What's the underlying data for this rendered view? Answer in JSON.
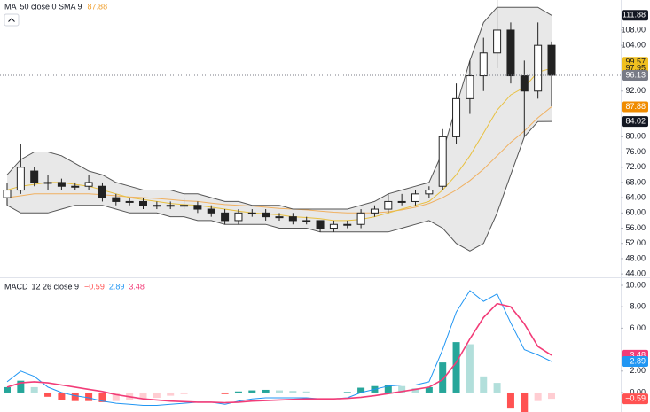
{
  "chart_data": [
    {
      "type": "candlestick",
      "title": "MA",
      "subtitle": "50 close 0 SMA 9",
      "legend_value": {
        "value": 87.88,
        "label": "87.88",
        "color": "#f0a030"
      },
      "open": [
        64,
        66,
        71,
        68,
        68,
        67,
        67,
        67,
        64,
        63,
        63,
        62,
        62,
        62,
        62,
        61,
        60,
        58,
        60,
        60,
        59,
        59,
        58,
        58,
        56,
        57,
        57,
        60,
        61,
        63,
        63,
        65,
        67,
        80,
        90,
        96,
        102,
        108,
        96,
        92,
        104
      ],
      "high": [
        68,
        78,
        72,
        70,
        69,
        68,
        70,
        68,
        65,
        64,
        64,
        63,
        63,
        64,
        63,
        62,
        61,
        61,
        61,
        61,
        60,
        60,
        59,
        58,
        58,
        58,
        61,
        62,
        65,
        65,
        66,
        67,
        82,
        94,
        100,
        106,
        116,
        110,
        100,
        110,
        105
      ],
      "low": [
        62,
        65,
        67,
        66,
        66,
        66,
        66,
        63,
        62,
        62,
        61,
        61,
        61,
        61,
        60,
        59,
        57,
        57,
        59,
        58,
        58,
        57,
        57,
        55,
        55,
        56,
        56,
        59,
        60,
        62,
        62,
        64,
        66,
        78,
        86,
        92,
        98,
        94,
        80,
        90,
        88
      ],
      "close": [
        66,
        72,
        68,
        68,
        67,
        67,
        68,
        64,
        63,
        63,
        62,
        62,
        62,
        62,
        61,
        60,
        58,
        60,
        60,
        59,
        59,
        58,
        58,
        56,
        57,
        57,
        60,
        61,
        63,
        63,
        65,
        66,
        80,
        90,
        96,
        102,
        108,
        96,
        92,
        104,
        96.13
      ],
      "up_color": "#ffffff",
      "down_color": "#222222",
      "series": [
        {
          "color": "#f0b060",
          "values": [
            64,
            64.5,
            65,
            65,
            65,
            65,
            65,
            64.8,
            64.5,
            64.2,
            64,
            63.8,
            63.5,
            63.2,
            63,
            62.6,
            62.2,
            62,
            61.8,
            61.5,
            61.2,
            61,
            60.8,
            60.5,
            60.2,
            60,
            60,
            60,
            60.3,
            60.8,
            61.5,
            62.5,
            64,
            66,
            68.5,
            71.5,
            75,
            78.5,
            81.5,
            85,
            87.88
          ]
        },
        {
          "color": "#e8c040",
          "values": [
            66,
            67,
            67.5,
            68,
            68,
            67.5,
            67,
            66,
            65,
            64,
            63.5,
            63,
            62.5,
            62.2,
            62,
            61.5,
            61,
            60.5,
            60,
            59.8,
            59.5,
            59,
            58.8,
            58.5,
            58,
            58,
            58.3,
            59,
            60,
            61,
            62,
            63,
            66,
            70,
            75,
            81,
            87,
            91,
            93,
            97,
            97.95
          ]
        },
        {
          "color": "#555555",
          "band": true,
          "values": [
            70,
            74,
            76,
            76,
            75,
            73,
            71,
            70,
            68,
            67,
            66,
            66,
            66,
            65,
            65,
            64,
            63,
            63,
            62,
            62,
            62,
            61,
            61,
            61,
            61,
            61,
            62,
            63,
            65,
            66,
            67,
            68,
            76,
            88,
            100,
            110,
            114,
            114,
            114,
            114,
            111.88
          ]
        },
        {
          "color": "#555555",
          "band": true,
          "values": [
            62,
            60,
            60,
            60,
            61,
            62,
            62,
            62,
            61,
            60,
            60,
            60,
            59,
            59,
            58,
            58,
            57,
            57,
            57,
            57,
            56,
            56,
            56,
            55,
            55,
            55,
            55,
            55,
            55,
            56,
            57,
            58,
            56,
            52,
            50,
            52,
            60,
            70,
            80,
            84,
            84.02
          ]
        }
      ],
      "ylim": [
        43.1,
        115.9
      ],
      "yticks": [
        {
          "value": 44,
          "label": "44.00"
        },
        {
          "value": 48,
          "label": "48.00"
        },
        {
          "value": 52,
          "label": "52.00"
        },
        {
          "value": 56,
          "label": "56.00"
        },
        {
          "value": 60,
          "label": "60.00"
        },
        {
          "value": 64,
          "label": "64.00"
        },
        {
          "value": 68,
          "label": "68.00"
        },
        {
          "value": 72,
          "label": "72.00"
        },
        {
          "value": 76,
          "label": "76.00"
        },
        {
          "value": 80,
          "label": "80.00"
        },
        {
          "value": 92,
          "label": "92.00"
        },
        {
          "value": 104,
          "label": "104.00"
        },
        {
          "value": 108,
          "label": "108.00"
        }
      ],
      "price_labels": [
        {
          "value": 111.88,
          "label": "111.88",
          "color": "#131722"
        },
        {
          "value": 99.57,
          "label": "99.57",
          "color": "#f0c020"
        },
        {
          "value": 97.95,
          "label": "97.95",
          "color": "#f0c020"
        },
        {
          "value": 96.13,
          "label": "96.13",
          "color": "#787b86"
        },
        {
          "value": 87.88,
          "label": "87.88",
          "color": "#f08c00"
        },
        {
          "value": 84.02,
          "label": "84.02",
          "color": "#131722"
        }
      ]
    },
    {
      "type": "macd",
      "title": "MACD",
      "subtitle": "12 26 close 9",
      "legend_values": [
        {
          "value": -0.59,
          "label": "−0.59",
          "color": "#ff5252"
        },
        {
          "value": 2.89,
          "label": "2.89",
          "color": "#2196f3"
        },
        {
          "value": 3.48,
          "label": "3.48",
          "color": "#f23c78"
        }
      ],
      "histogram": [
        0.5,
        1.1,
        0.5,
        -0.4,
        -0.7,
        -0.8,
        -0.8,
        -0.9,
        -0.8,
        -0.7,
        -0.6,
        -0.5,
        -0.3,
        -0.15,
        0,
        0,
        -0.15,
        0.1,
        0.2,
        0.25,
        0.2,
        0.15,
        0.1,
        0,
        0,
        0.05,
        0.45,
        0.6,
        0.7,
        0.6,
        0.4,
        0.5,
        2.8,
        4.7,
        4.5,
        1.5,
        0.9,
        -1.5,
        -2.4,
        -0.8,
        -0.59
      ],
      "hist_colors": [
        "#26a69a",
        "#b2dfdb",
        "#ff5252",
        "#ffcdd2"
      ],
      "series": [
        {
          "color": "#2196f3",
          "values": [
            1,
            2,
            1.5,
            0.5,
            0,
            -0.3,
            -0.5,
            -0.8,
            -1,
            -1.1,
            -1.2,
            -1.2,
            -1.1,
            -1.0,
            -0.9,
            -0.9,
            -1.1,
            -0.8,
            -0.6,
            -0.5,
            -0.5,
            -0.5,
            -0.5,
            -0.6,
            -0.6,
            -0.5,
            0,
            0.3,
            0.6,
            0.7,
            0.7,
            1,
            4,
            7.5,
            9.5,
            8.5,
            9.2,
            6.5,
            4,
            3.5,
            2.89
          ]
        },
        {
          "color": "#f23c78",
          "values": [
            0.5,
            0.9,
            1.0,
            0.9,
            0.7,
            0.5,
            0.3,
            0.1,
            -0.2,
            -0.4,
            -0.6,
            -0.7,
            -0.8,
            -0.85,
            -0.9,
            -0.9,
            -0.95,
            -0.9,
            -0.8,
            -0.75,
            -0.7,
            -0.65,
            -0.6,
            -0.6,
            -0.6,
            -0.55,
            -0.45,
            -0.3,
            -0.1,
            0.1,
            0.3,
            0.5,
            1.2,
            2.8,
            5,
            7,
            8.3,
            8,
            6.4,
            4.3,
            3.48
          ]
        }
      ],
      "ylim": [
        -1.82,
        10.33
      ],
      "yticks": [
        {
          "value": 0,
          "label": "0.00"
        },
        {
          "value": 2,
          "label": "2.00"
        },
        {
          "value": 6,
          "label": "6.00"
        },
        {
          "value": 8,
          "label": "8.00"
        },
        {
          "value": 10,
          "label": "10.00"
        }
      ],
      "price_labels": [
        {
          "value": 3.48,
          "label": "3.48",
          "color": "#f23c78"
        },
        {
          "value": 2.89,
          "label": "2.89",
          "color": "#2196f3"
        },
        {
          "value": -0.59,
          "label": "−0.59",
          "color": "#ff5252"
        }
      ]
    }
  ]
}
